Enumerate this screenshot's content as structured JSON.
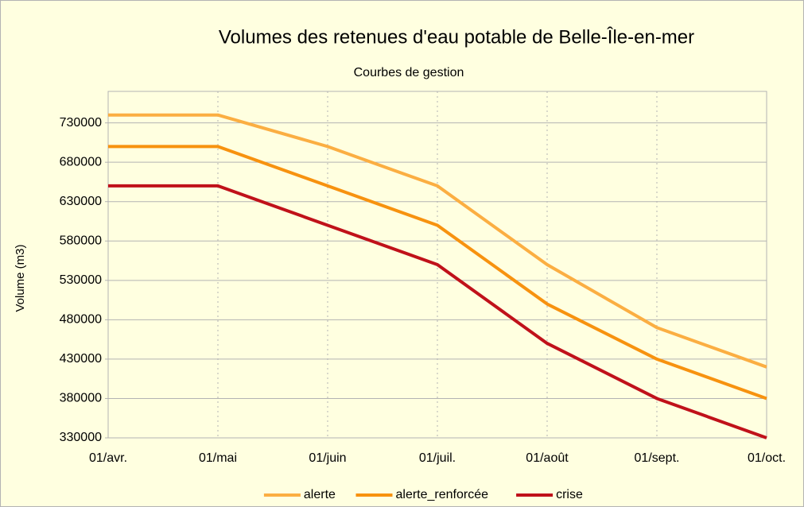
{
  "chart_data": {
    "type": "line",
    "title": "Volumes des retenues d'eau potable de Belle-Île-en-mer",
    "subtitle": "Courbes de gestion",
    "y_label": "Volume (m3)",
    "categories": [
      "01/avr.",
      "01/mai",
      "01/juin",
      "01/juil.",
      "01/août",
      "01/sept.",
      "01/oct."
    ],
    "series": [
      {
        "name": "alerte",
        "color": "#fbae42",
        "values": [
          740000,
          740000,
          700000,
          650000,
          550000,
          470000,
          420000
        ]
      },
      {
        "name": "alerte_renforcée",
        "color": "#f7920f",
        "values": [
          700000,
          700000,
          650000,
          600000,
          500000,
          430000,
          380000
        ]
      },
      {
        "name": "crise",
        "color": "#c0111a",
        "values": [
          650000,
          650000,
          600000,
          550000,
          450000,
          380000,
          330000
        ]
      }
    ],
    "ylim": [
      330000,
      770000
    ],
    "yticks": [
      330000,
      380000,
      430000,
      480000,
      530000,
      580000,
      630000,
      680000,
      730000
    ],
    "grid": true,
    "legend": "bottom"
  }
}
